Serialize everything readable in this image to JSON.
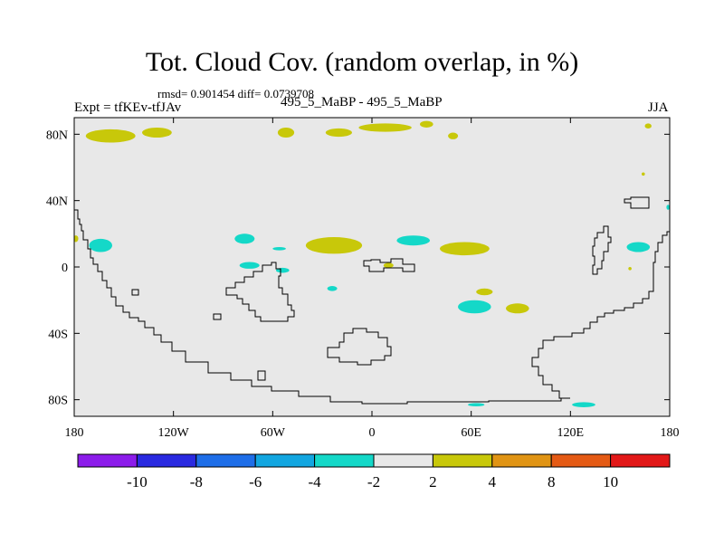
{
  "chart_data": {
    "type": "heatmap",
    "title": "Tot. Cloud Cov. (random overlap, in %)",
    "stats": "rmsd= 0.901454  diff= 0.0739708",
    "experiment": "Expt = tfKEv-tfJAv",
    "cases": "495_5_MaBP - 495_5_MaBP",
    "season": "JJA",
    "xlim": [
      -180,
      180
    ],
    "ylim": [
      -90,
      90
    ],
    "x_ticks": [
      {
        "value": -180,
        "label": "180"
      },
      {
        "value": -120,
        "label": "120W"
      },
      {
        "value": -60,
        "label": "60W"
      },
      {
        "value": 0,
        "label": "0"
      },
      {
        "value": 60,
        "label": "60E"
      },
      {
        "value": 120,
        "label": "120E"
      },
      {
        "value": 180,
        "label": "180"
      }
    ],
    "y_ticks": [
      {
        "value": 80,
        "label": "80N"
      },
      {
        "value": 40,
        "label": "40N"
      },
      {
        "value": 0,
        "label": "0"
      },
      {
        "value": -40,
        "label": "40S"
      },
      {
        "value": -80,
        "label": "80S"
      }
    ],
    "background_color": "#e8e8e8",
    "colorbar": {
      "colors": [
        "#8c1cea",
        "#2a2ae0",
        "#1e6ee8",
        "#12a6e0",
        "#14d8c8",
        "#e8e8e8",
        "#c8c80a",
        "#e09414",
        "#e45a14",
        "#e21818"
      ],
      "labels": [
        "-10",
        "-8",
        "-6",
        "-4",
        "-2",
        "2",
        "4",
        "8",
        "10"
      ]
    },
    "regions": [
      {
        "lon": -158,
        "lat": 79,
        "rx": 15,
        "ry": 4,
        "class": "2 to 4"
      },
      {
        "lon": -130,
        "lat": 81,
        "rx": 9,
        "ry": 3,
        "class": "2 to 4"
      },
      {
        "lon": -52,
        "lat": 81,
        "rx": 5,
        "ry": 3,
        "class": "2 to 4"
      },
      {
        "lon": -20,
        "lat": 81,
        "rx": 8,
        "ry": 2.5,
        "class": "2 to 4"
      },
      {
        "lon": 8,
        "lat": 84,
        "rx": 16,
        "ry": 2.5,
        "class": "2 to 4"
      },
      {
        "lon": 33,
        "lat": 86,
        "rx": 4,
        "ry": 2,
        "class": "2 to 4"
      },
      {
        "lon": 49,
        "lat": 79,
        "rx": 3,
        "ry": 2,
        "class": "2 to 4"
      },
      {
        "lon": 167,
        "lat": 85,
        "rx": 2,
        "ry": 1.5,
        "class": "2 to 4"
      },
      {
        "lon": 164,
        "lat": 56,
        "rx": 1,
        "ry": 1,
        "class": "2 to 4"
      },
      {
        "lon": 179,
        "lat": 36,
        "rx": 1,
        "ry": 1.5,
        "class": "-4 to -2"
      },
      {
        "lon": -164,
        "lat": 13,
        "rx": 7,
        "ry": 4,
        "class": "-4 to -2"
      },
      {
        "lon": -179,
        "lat": 17,
        "rx": 1.5,
        "ry": 2,
        "class": "2 to 4"
      },
      {
        "lon": -77,
        "lat": 17,
        "rx": 6,
        "ry": 3,
        "class": "-4 to -2"
      },
      {
        "lon": -56,
        "lat": 11,
        "rx": 4,
        "ry": 1,
        "class": "-4 to -2"
      },
      {
        "lon": -74,
        "lat": 1,
        "rx": 6,
        "ry": 2,
        "class": "-4 to -2"
      },
      {
        "lon": -54,
        "lat": -2,
        "rx": 4,
        "ry": 1.5,
        "class": "-4 to -2"
      },
      {
        "lon": -23,
        "lat": 13,
        "rx": 17,
        "ry": 5,
        "class": "2 to 4"
      },
      {
        "lon": 25,
        "lat": 16,
        "rx": 10,
        "ry": 3,
        "class": "-4 to -2"
      },
      {
        "lon": 56,
        "lat": 11,
        "rx": 15,
        "ry": 4,
        "class": "2 to 4"
      },
      {
        "lon": 10,
        "lat": 1,
        "rx": 3,
        "ry": 1.5,
        "class": "2 to 4"
      },
      {
        "lon": -24,
        "lat": -13,
        "rx": 3,
        "ry": 1.5,
        "class": "-4 to -2"
      },
      {
        "lon": 68,
        "lat": -15,
        "rx": 5,
        "ry": 2,
        "class": "2 to 4"
      },
      {
        "lon": 62,
        "lat": -24,
        "rx": 10,
        "ry": 4,
        "class": "-4 to -2"
      },
      {
        "lon": 88,
        "lat": -25,
        "rx": 7,
        "ry": 3,
        "class": "2 to 4"
      },
      {
        "lon": 161,
        "lat": 12,
        "rx": 7,
        "ry": 3,
        "class": "-4 to -2"
      },
      {
        "lon": 128,
        "lat": -83,
        "rx": 7,
        "ry": 1.5,
        "class": "-4 to -2"
      },
      {
        "lon": 63,
        "lat": -83,
        "rx": 5,
        "ry": 1,
        "class": "-4 to -2"
      },
      {
        "lon": 156,
        "lat": -1,
        "rx": 1,
        "ry": 1,
        "class": "2 to 4"
      }
    ]
  }
}
